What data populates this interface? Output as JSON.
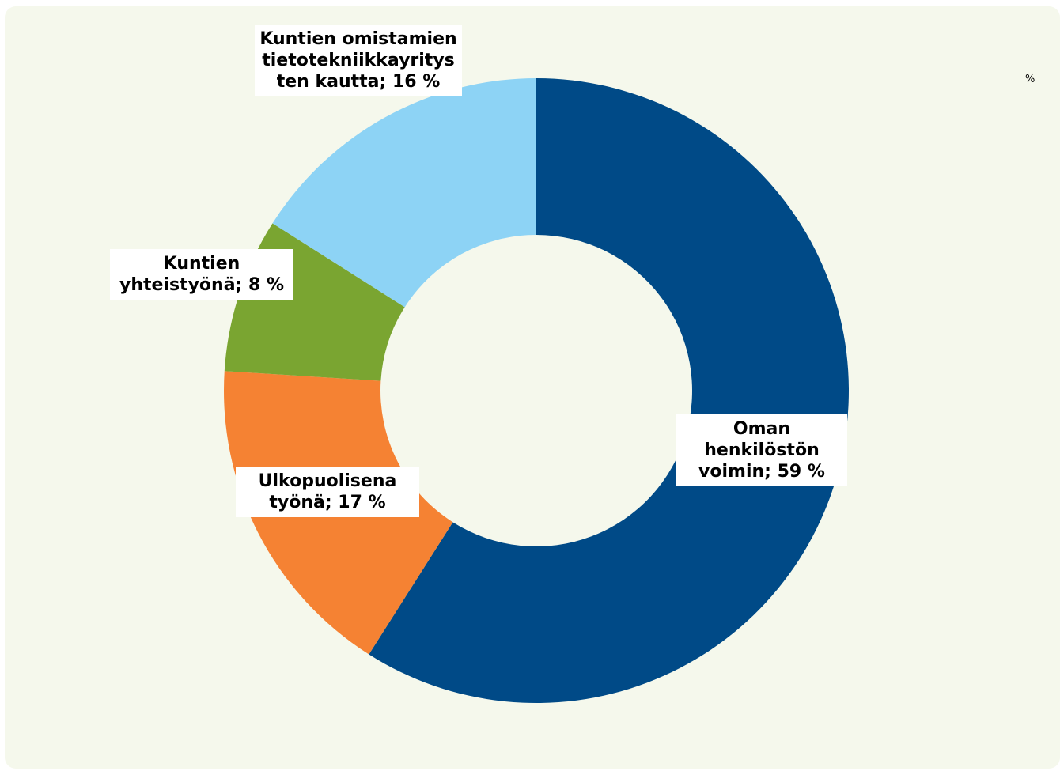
{
  "chart_data": {
    "type": "donut",
    "unit_label": "%",
    "values": [
      59,
      17,
      8,
      16
    ],
    "value_labels": [
      "Oman henkilöstön voimin; 59 %",
      "Ulkopuolisena työnä; 17 %",
      "Kuntien yhteistyönä; 8 %",
      "Kuntien omistamien tietotekniikkayritysten kautta; 16 %"
    ],
    "colors": [
      "#004a87",
      "#f58233",
      "#7aa531",
      "#8dd3f5"
    ]
  }
}
